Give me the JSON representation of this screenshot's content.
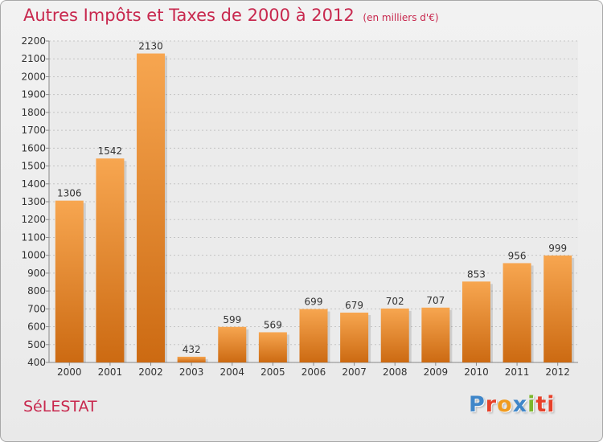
{
  "chart_data": {
    "type": "bar",
    "title": "Autres Impôts et Taxes de 2000 à 2012",
    "subtitle": "(en milliers d'€)",
    "categories": [
      "2000",
      "2001",
      "2002",
      "2003",
      "2004",
      "2005",
      "2006",
      "2007",
      "2008",
      "2009",
      "2010",
      "2011",
      "2012"
    ],
    "values": [
      1306,
      1542,
      2130,
      432,
      599,
      569,
      699,
      679,
      702,
      707,
      853,
      956,
      999
    ],
    "ylim": [
      400,
      2200
    ],
    "yticks": [
      400,
      500,
      600,
      700,
      800,
      900,
      1000,
      1100,
      1200,
      1300,
      1400,
      1500,
      1600,
      1700,
      1800,
      1900,
      2000,
      2100,
      2200
    ],
    "grid": true,
    "xlabel": "",
    "ylabel": "",
    "bar_color_top": "#f7a650",
    "bar_color_bottom": "#cc6a12"
  },
  "place": "SéLESTAT",
  "logo": {
    "letters": [
      "P",
      "r",
      "o",
      "x",
      "i",
      "ti"
    ]
  }
}
